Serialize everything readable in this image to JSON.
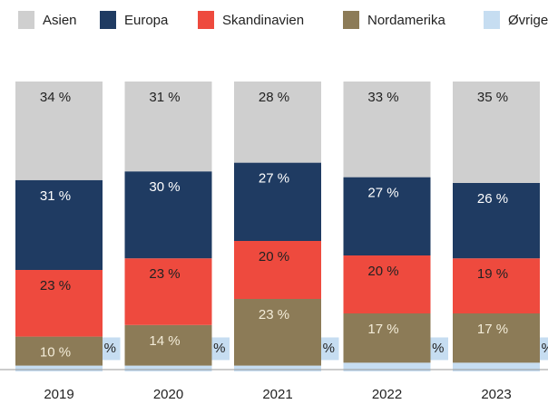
{
  "chart_data": {
    "type": "stacked_bar",
    "categories": [
      "2019",
      "2020",
      "2021",
      "2022",
      "2023"
    ],
    "series": [
      {
        "name": "Øvrige",
        "color": "#c6ddf1",
        "values": [
          2,
          2,
          2,
          3,
          3
        ],
        "value_labels": [
          "2 %",
          "2 %",
          "2 %",
          "3 %",
          "3 %"
        ]
      },
      {
        "name": "Nordamerika",
        "color": "#8c7b57",
        "values": [
          10,
          14,
          23,
          17,
          17
        ],
        "value_labels": [
          "10 %",
          "14 %",
          "23 %",
          "17 %",
          "17 %"
        ]
      },
      {
        "name": "Skandinavien",
        "color": "#ee4a3e",
        "values": [
          23,
          23,
          20,
          20,
          19
        ],
        "value_labels": [
          "23 %",
          "23 %",
          "20 %",
          "20 %",
          "19 %"
        ]
      },
      {
        "name": "Europa",
        "color": "#1f3b62",
        "values": [
          31,
          30,
          27,
          27,
          26
        ],
        "value_labels": [
          "31 %",
          "30 %",
          "27 %",
          "27 %",
          "26 %"
        ]
      },
      {
        "name": "Asien",
        "color": "#cfcfcf",
        "values": [
          34,
          31,
          28,
          33,
          35
        ],
        "value_labels": [
          "34 %",
          "31 %",
          "28 %",
          "33 %",
          "35 %"
        ]
      }
    ]
  }
}
